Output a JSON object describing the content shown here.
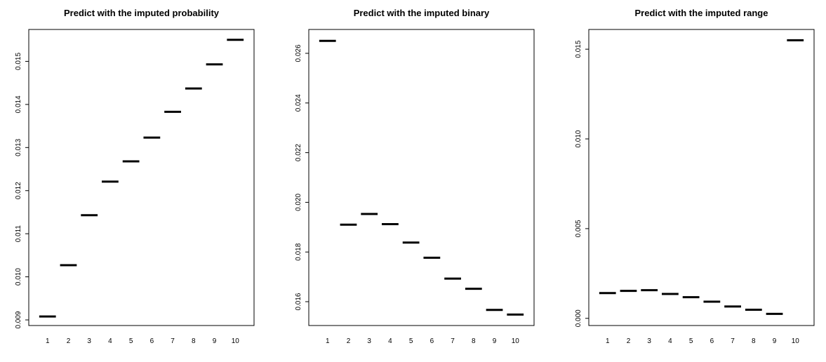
{
  "chart_data": [
    {
      "type": "scatter",
      "marker": "horizontal-segment",
      "title": "Predict with the imputed probability",
      "xlabel": "",
      "ylabel": "",
      "categories": [
        "1",
        "2",
        "3",
        "4",
        "5",
        "6",
        "7",
        "8",
        "9",
        "10"
      ],
      "values": [
        0.00908,
        0.01027,
        0.01143,
        0.01221,
        0.01268,
        0.01323,
        0.01383,
        0.01437,
        0.01493,
        0.0155
      ],
      "ylim": [
        0.00887,
        0.01574
      ],
      "yticks": [
        "0.009",
        "0.010",
        "0.011",
        "0.012",
        "0.013",
        "0.014",
        "0.015"
      ],
      "ytick_values": [
        0.009,
        0.01,
        0.011,
        0.012,
        0.013,
        0.014,
        0.015
      ],
      "grid": false,
      "color": "#000000"
    },
    {
      "type": "scatter",
      "marker": "horizontal-segment",
      "title": "Predict with the imputed binary",
      "xlabel": "",
      "ylabel": "",
      "categories": [
        "1",
        "2",
        "3",
        "4",
        "5",
        "6",
        "7",
        "8",
        "9",
        "10"
      ],
      "values": [
        0.0265,
        0.0191,
        0.01953,
        0.01912,
        0.01838,
        0.01777,
        0.01693,
        0.01652,
        0.01567,
        0.01548
      ],
      "ylim": [
        0.01504,
        0.02696
      ],
      "yticks": [
        "0.016",
        "0.018",
        "0.020",
        "0.022",
        "0.024",
        "0.026"
      ],
      "ytick_values": [
        0.016,
        0.018,
        0.02,
        0.022,
        0.024,
        0.026
      ],
      "grid": false,
      "color": "#000000"
    },
    {
      "type": "scatter",
      "marker": "horizontal-segment",
      "title": "Predict with the imputed range",
      "xlabel": "",
      "ylabel": "",
      "categories": [
        "1",
        "2",
        "3",
        "4",
        "5",
        "6",
        "7",
        "8",
        "9",
        "10"
      ],
      "values": [
        0.00141,
        0.00153,
        0.00157,
        0.00136,
        0.00118,
        0.00093,
        0.00066,
        0.00048,
        0.00025,
        0.0155
      ],
      "ylim": [
        -0.0004,
        0.0161
      ],
      "yticks": [
        "0.000",
        "0.005",
        "0.010",
        "0.015"
      ],
      "ytick_values": [
        0.0,
        0.005,
        0.01,
        0.015
      ],
      "grid": false,
      "color": "#000000"
    }
  ]
}
